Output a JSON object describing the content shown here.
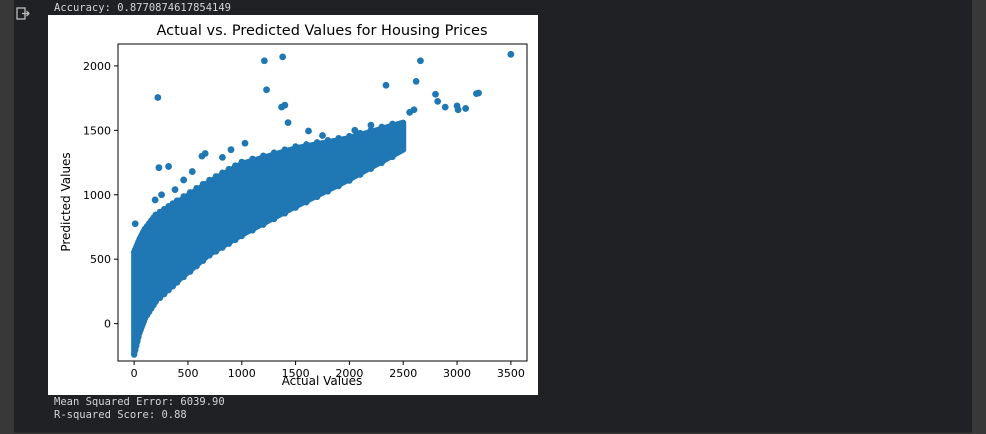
{
  "output": {
    "accuracy_line": "Accuracy: 0.8770874617854149",
    "mse_line": "Mean Squared Error: 6039.90",
    "r2_line": "R-squared Score: 0.88"
  },
  "colors": {
    "marker": "#1f77b4",
    "background": "#202124",
    "text": "#d4d4d4"
  },
  "icons": {
    "output_icon": "output-arrow-icon"
  },
  "chart_data": {
    "type": "scatter",
    "title": "Actual vs. Predicted Values for Housing Prices",
    "xlabel": "Actual Values",
    "ylabel": "Predicted Values",
    "xlim": [
      -150,
      3650
    ],
    "ylim": [
      -290,
      2170
    ],
    "xticks": [
      0,
      500,
      1000,
      1500,
      2000,
      2500,
      3000,
      3500
    ],
    "yticks": [
      0,
      500,
      1000,
      1500,
      2000
    ],
    "grid": false,
    "legend": "none",
    "outliers": [
      [
        10,
        775
      ],
      [
        220,
        1755
      ],
      [
        230,
        1210
      ],
      [
        320,
        1220
      ],
      [
        195,
        960
      ],
      [
        255,
        1000
      ],
      [
        380,
        1040
      ],
      [
        460,
        1115
      ],
      [
        630,
        1300
      ],
      [
        660,
        1320
      ],
      [
        1030,
        1400
      ],
      [
        1210,
        2040
      ],
      [
        1380,
        2070
      ],
      [
        1230,
        1815
      ],
      [
        1370,
        1680
      ],
      [
        1400,
        1695
      ],
      [
        1430,
        1560
      ],
      [
        1620,
        1495
      ],
      [
        2340,
        1850
      ],
      [
        2620,
        1880
      ],
      [
        2660,
        2040
      ],
      [
        2800,
        1780
      ],
      [
        2820,
        1725
      ],
      [
        2890,
        1680
      ],
      [
        3000,
        1690
      ],
      [
        3010,
        1660
      ],
      [
        3080,
        1670
      ],
      [
        3200,
        1790
      ],
      [
        3180,
        1785
      ],
      [
        3500,
        2090
      ],
      [
        2560,
        1640
      ],
      [
        2600,
        1660
      ],
      [
        1750,
        1460
      ],
      [
        2050,
        1500
      ],
      [
        2200,
        1540
      ],
      [
        60,
        650
      ],
      [
        100,
        590
      ],
      [
        540,
        1180
      ],
      [
        820,
        1290
      ],
      [
        900,
        1350
      ]
    ],
    "main_band": {
      "x": [
        0,
        50,
        100,
        200,
        400,
        700,
        1000,
        1500,
        2000,
        2500
      ],
      "y_lower": [
        -230,
        -60,
        50,
        180,
        330,
        540,
        690,
        910,
        1120,
        1350
      ],
      "y_upper": [
        540,
        640,
        720,
        830,
        940,
        1100,
        1240,
        1360,
        1440,
        1560
      ]
    }
  }
}
